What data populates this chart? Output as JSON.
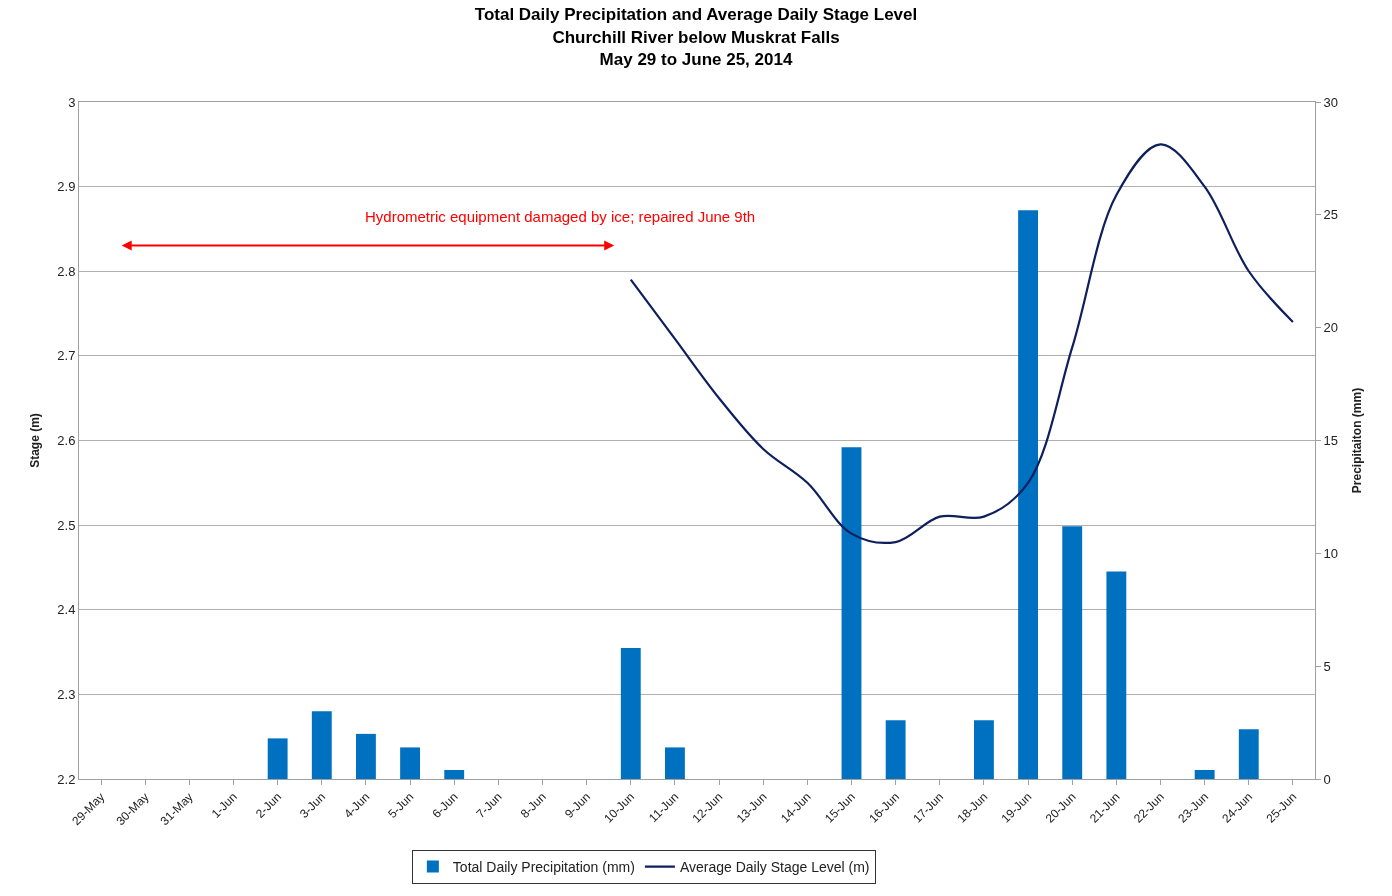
{
  "chart_data": {
    "type": "bar",
    "title": "Total Daily Precipitation and Average Daily Stage Level\nChurchill River below Muskrat Falls\nMay 29 to June 25, 2014",
    "ylabel": "Stage (m)",
    "y2label": "Precipitaiton (mm)",
    "categories": [
      "29-May",
      "30-May",
      "31-May",
      "1-Jun",
      "2-Jun",
      "3-Jun",
      "4-Jun",
      "5-Jun",
      "6-Jun",
      "7-Jun",
      "8-Jun",
      "9-Jun",
      "10-Jun",
      "11-Jun",
      "12-Jun",
      "13-Jun",
      "14-Jun",
      "15-Jun",
      "16-Jun",
      "17-Jun",
      "18-Jun",
      "19-Jun",
      "20-Jun",
      "21-Jun",
      "22-Jun",
      "23-Jun",
      "24-Jun",
      "25-Jun"
    ],
    "series": [
      {
        "name": "Total Daily Precipitation (mm)",
        "axis": "y2",
        "color": "#0070c0",
        "values": [
          0,
          0,
          0,
          0,
          1.8,
          3.0,
          2.0,
          1.4,
          0.4,
          0,
          0,
          0,
          5.8,
          1.4,
          0,
          0,
          0,
          14.7,
          2.6,
          0,
          2.6,
          25.2,
          11.2,
          9.2,
          0,
          0.4,
          2.2,
          0
        ]
      },
      {
        "name": "Average Daily Stage Level (m)",
        "type": "line",
        "axis": "y",
        "color": "#0d1f5c",
        "marker": "none",
        "line_style": "solid",
        "values": [
          null,
          null,
          null,
          null,
          null,
          null,
          null,
          null,
          null,
          null,
          null,
          null,
          2.79,
          2.72,
          2.65,
          2.59,
          2.55,
          2.49,
          2.48,
          2.51,
          2.51,
          2.55,
          2.71,
          2.89,
          2.95,
          2.9,
          2.8,
          2.74
        ]
      }
    ],
    "ylim": [
      2.2,
      3
    ],
    "yticks": [
      2.2,
      2.3,
      2.4,
      2.5,
      2.6,
      2.7,
      2.8,
      2.9,
      3
    ],
    "y2lim": [
      0,
      30
    ],
    "y2ticks": [
      0,
      5,
      10,
      15,
      20,
      25,
      30
    ],
    "annotations": [
      "Hydrometric equipment damaged by ice; repaired June 9th"
    ],
    "grid": "y",
    "legend": "bottom"
  }
}
